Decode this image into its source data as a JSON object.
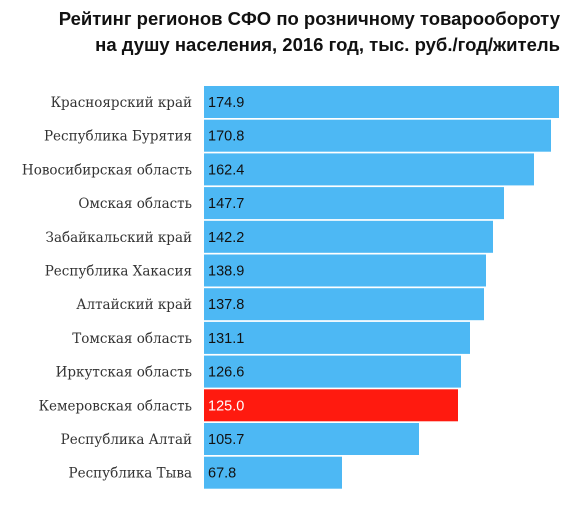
{
  "colors": {
    "bar": "#4db8f4",
    "highlight": "#ff1a0f",
    "background": "#ffffff"
  },
  "chart_data": {
    "type": "bar",
    "orientation": "horizontal",
    "title_lines": [
      "Рейтинг регионов СФО по розничному товарообороту",
      "на душу населения, 2016 год, тыс. руб./год/житель"
    ],
    "categories": [
      "Красноярский край",
      "Республика Бурятия",
      "Новосибирская область",
      "Омская область",
      "Забайкальский край",
      "Республика Хакасия",
      "Алтайский край",
      "Томская область",
      "Иркутская область",
      "Кемеровская область",
      "Республика Алтай",
      "Республика Тыва"
    ],
    "values": [
      174.9,
      170.8,
      162.4,
      147.7,
      142.2,
      138.9,
      137.8,
      131.1,
      126.6,
      125.0,
      105.7,
      67.8
    ],
    "value_labels": [
      "174.9",
      "170.8",
      "162.4",
      "147.7",
      "142.2",
      "138.9",
      "137.8",
      "131.1",
      "126.6",
      "125.0",
      "105.7",
      "67.8"
    ],
    "highlighted_category": "Кемеровская область",
    "xlim": [
      0,
      174.9
    ],
    "grid": false,
    "legend": "none"
  }
}
